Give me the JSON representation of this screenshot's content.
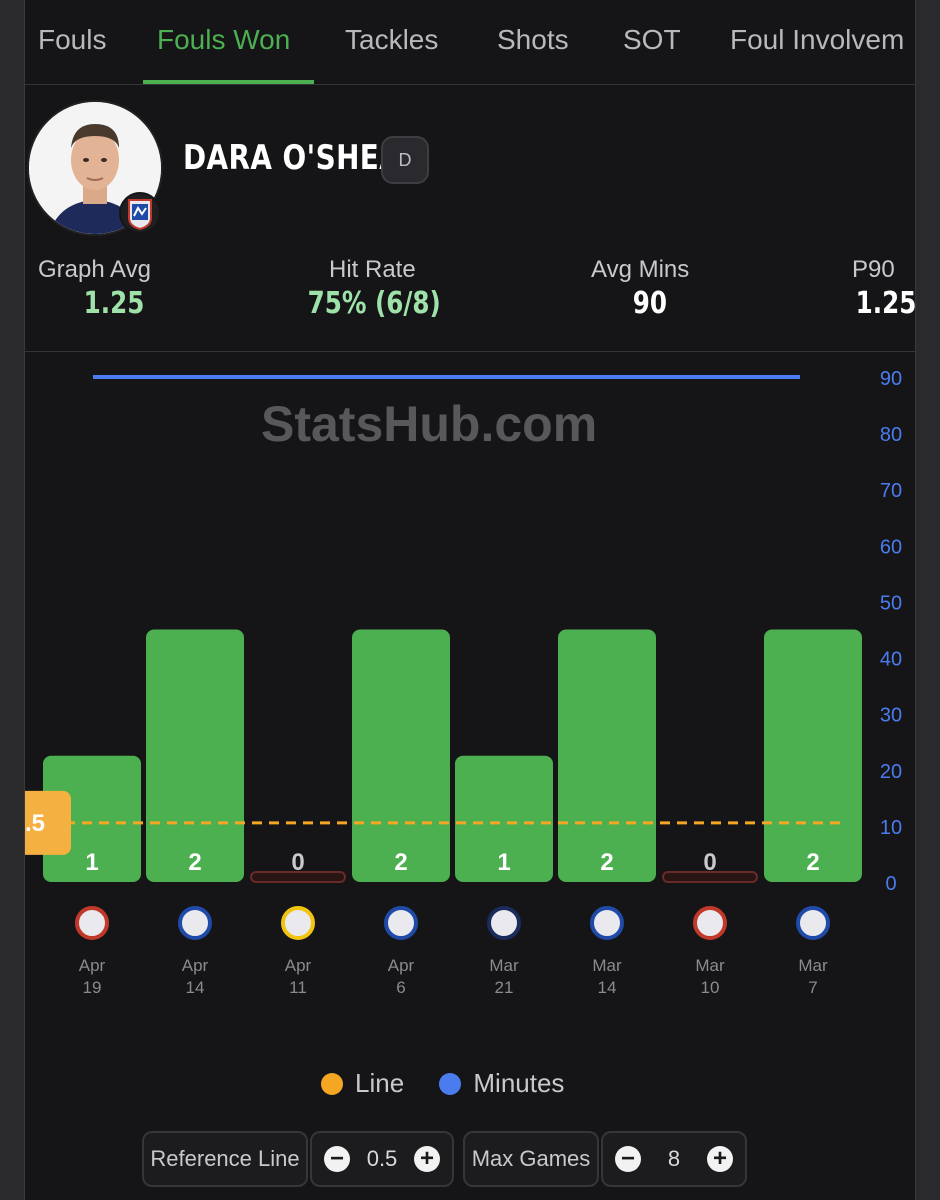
{
  "tabs": [
    {
      "label": "Fouls",
      "active": false
    },
    {
      "label": "Fouls Won",
      "active": true
    },
    {
      "label": "Tackles",
      "active": false
    },
    {
      "label": "Shots",
      "active": false
    },
    {
      "label": "SOT",
      "active": false
    },
    {
      "label": "Foul Involvem",
      "active": false
    }
  ],
  "player": {
    "name": "DARA O'SHEA",
    "position": "D",
    "stats": [
      {
        "label": "Graph Avg",
        "value": "1.25"
      },
      {
        "label": "Hit Rate",
        "value": "75% (6/8)"
      },
      {
        "label": "Avg Mins",
        "value": "90"
      },
      {
        "label": "P90",
        "value": "1.25"
      }
    ]
  },
  "chart": {
    "watermark": "StatsHub.com",
    "reference_label": ".5",
    "legend": [
      {
        "label": "Line",
        "color": "#f5a623"
      },
      {
        "label": "Minutes",
        "color": "#4a7cf0"
      }
    ]
  },
  "chart_data": {
    "type": "bar",
    "categories": [
      "Apr 19",
      "Apr 14",
      "Apr 11",
      "Apr 6",
      "Mar 21",
      "Mar 14",
      "Mar 10",
      "Mar 7"
    ],
    "date_month": [
      "Apr",
      "Apr",
      "Apr",
      "Apr",
      "Mar",
      "Mar",
      "Mar",
      "Mar"
    ],
    "date_day": [
      "19",
      "14",
      "11",
      "6",
      "21",
      "14",
      "10",
      "7"
    ],
    "series": [
      {
        "name": "Fouls Won",
        "values": [
          1,
          2,
          0,
          2,
          1,
          2,
          0,
          2
        ],
        "color": "#4caf50"
      },
      {
        "name": "Minutes",
        "values": [
          90,
          90,
          90,
          90,
          90,
          90,
          90,
          90
        ],
        "color": "#4a7cf0"
      }
    ],
    "reference_line": 0.5,
    "right_axis": {
      "ticks": [
        0,
        10,
        20,
        30,
        40,
        50,
        60,
        70,
        80,
        90
      ],
      "ylim": [
        0,
        90
      ],
      "color": "#4a7cf0"
    },
    "left_axis": {
      "ylim": [
        0,
        4
      ]
    }
  },
  "controls": {
    "reference_label": "Reference Line",
    "reference_value": "0.5",
    "max_games_label": "Max Games",
    "max_games_value": "8",
    "minus": "−",
    "plus": "+"
  }
}
